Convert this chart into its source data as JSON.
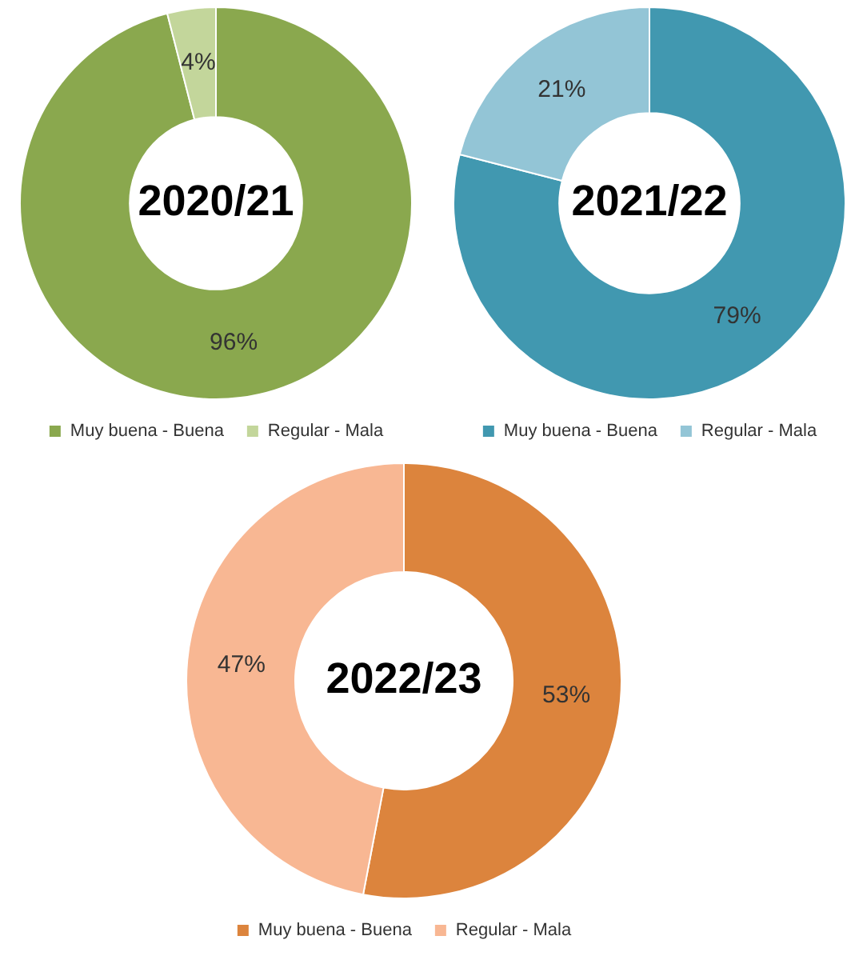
{
  "chart_data": [
    {
      "type": "donut",
      "title": "2020/21",
      "categories": [
        "Muy buena - Buena",
        "Regular - Mala"
      ],
      "values": [
        96,
        4
      ],
      "colors": [
        "#8aa84e",
        "#c3d69b"
      ],
      "value_labels": [
        "96%",
        "4%"
      ],
      "legend": "bottom"
    },
    {
      "type": "donut",
      "title": "2021/22",
      "categories": [
        "Muy buena - Buena",
        "Regular - Mala"
      ],
      "values": [
        79,
        21
      ],
      "colors": [
        "#4198b0",
        "#93c5d6"
      ],
      "value_labels": [
        "79%",
        "21%"
      ],
      "legend": "bottom"
    },
    {
      "type": "donut",
      "title": "2022/23",
      "categories": [
        "Muy buena - Buena",
        "Regular - Mala"
      ],
      "values": [
        53,
        47
      ],
      "colors": [
        "#dc843d",
        "#f8b793"
      ],
      "value_labels": [
        "53%",
        "47%"
      ],
      "legend": "bottom"
    }
  ]
}
